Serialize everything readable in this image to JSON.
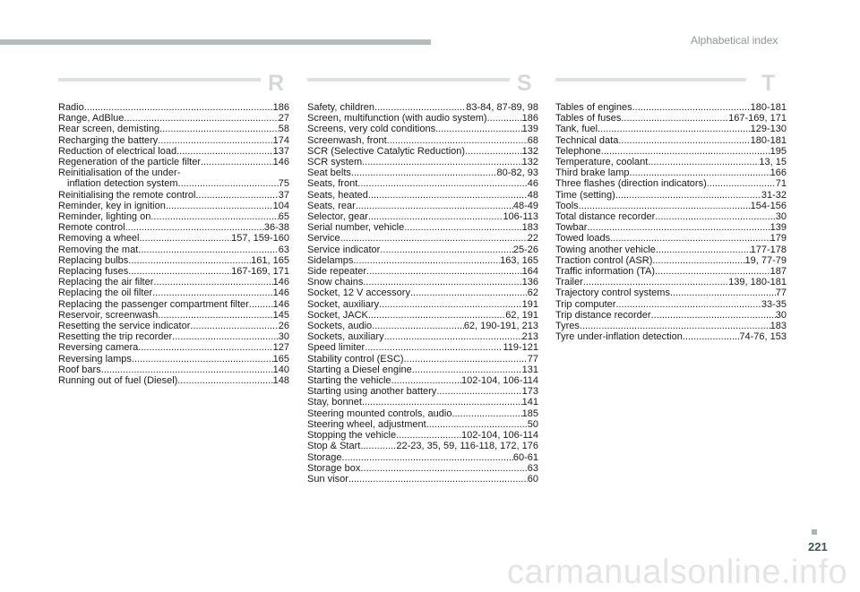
{
  "header": {
    "title": "Alphabetical index"
  },
  "sections": [
    {
      "letter": "R",
      "entries": [
        {
          "name": "Radio",
          "pages": "186"
        },
        {
          "name": "Range, AdBlue",
          "pages": "27"
        },
        {
          "name": "Rear screen, demisting",
          "pages": "58"
        },
        {
          "name": "Recharging the battery",
          "pages": "174"
        },
        {
          "name": "Reduction of electrical load",
          "pages": "137"
        },
        {
          "name": "Regeneration of the particle filter",
          "pages": "146"
        },
        {
          "name": "Reinitialisation of the under-",
          "pages": ""
        },
        {
          "name": "inflation detection system",
          "pages": "75",
          "indent": true
        },
        {
          "name": "Reinitialising the remote control",
          "pages": "37"
        },
        {
          "name": "Reminder, key in ignition",
          "pages": "104"
        },
        {
          "name": "Reminder, lighting on",
          "pages": "65"
        },
        {
          "name": "Remote control",
          "pages": "36-38"
        },
        {
          "name": "Removing a wheel",
          "pages": "157, 159-160"
        },
        {
          "name": "Removing the mat",
          "pages": "63"
        },
        {
          "name": "Replacing bulbs",
          "pages": "161, 165"
        },
        {
          "name": "Replacing fuses",
          "pages": "167-169, 171"
        },
        {
          "name": "Replacing the air filter",
          "pages": "146"
        },
        {
          "name": "Replacing the oil filter",
          "pages": "146"
        },
        {
          "name": "Replacing the passenger compartment filter",
          "pages": "146"
        },
        {
          "name": "Reservoir, screenwash",
          "pages": "145"
        },
        {
          "name": "Resetting the service indicator",
          "pages": "26"
        },
        {
          "name": "Resetting the trip recorder",
          "pages": "30"
        },
        {
          "name": "Reversing camera",
          "pages": "127"
        },
        {
          "name": "Reversing lamps",
          "pages": "165"
        },
        {
          "name": "Roof bars",
          "pages": "140"
        },
        {
          "name": "Running out of fuel (Diesel)",
          "pages": "148"
        }
      ]
    },
    {
      "letter": "S",
      "entries": [
        {
          "name": "Safety, children",
          "pages": "83-84, 87-89, 98"
        },
        {
          "name": "Screen, multifunction (with audio system)",
          "pages": "186"
        },
        {
          "name": "Screens, very cold conditions",
          "pages": "139"
        },
        {
          "name": "Screenwash, front",
          "pages": "68"
        },
        {
          "name": "SCR (Selective Catalytic Reduction)",
          "pages": "132"
        },
        {
          "name": "SCR system",
          "pages": "132"
        },
        {
          "name": "Seat belts",
          "pages": "80-82, 93"
        },
        {
          "name": "Seats, front",
          "pages": "46"
        },
        {
          "name": "Seats, heated",
          "pages": "48"
        },
        {
          "name": "Seats, rear",
          "pages": "48-49"
        },
        {
          "name": "Selector, gear",
          "pages": "106-113"
        },
        {
          "name": "Serial number, vehicle",
          "pages": "183"
        },
        {
          "name": "Service",
          "pages": "22"
        },
        {
          "name": "Service indicator",
          "pages": "25-26"
        },
        {
          "name": "Sidelamps",
          "pages": "163, 165"
        },
        {
          "name": "Side repeater",
          "pages": "164"
        },
        {
          "name": "Snow chains",
          "pages": "136"
        },
        {
          "name": "Socket, 12 V accessory",
          "pages": "62"
        },
        {
          "name": "Socket, auxiliary",
          "pages": "191"
        },
        {
          "name": "Socket, JACK",
          "pages": "62, 191"
        },
        {
          "name": "Sockets, audio",
          "pages": "62, 190-191, 213"
        },
        {
          "name": "Sockets, auxiliary",
          "pages": "213"
        },
        {
          "name": "Speed limiter",
          "pages": "119-121"
        },
        {
          "name": "Stability control (ESC)",
          "pages": "77"
        },
        {
          "name": "Starting a Diesel engine",
          "pages": "131"
        },
        {
          "name": "Starting the vehicle",
          "pages": "102-104, 106-114"
        },
        {
          "name": "Starting using another battery",
          "pages": "173"
        },
        {
          "name": "Stay, bonnet",
          "pages": "141"
        },
        {
          "name": "Steering mounted controls, audio",
          "pages": "185"
        },
        {
          "name": "Steering wheel, adjustment",
          "pages": "50"
        },
        {
          "name": "Stopping the vehicle",
          "pages": "102-104, 106-114"
        },
        {
          "name": "Stop & Start",
          "pages": "22-23, 35, 59, 116-118, 172, 176"
        },
        {
          "name": "Storage",
          "pages": "60-61"
        },
        {
          "name": "Storage box",
          "pages": "63"
        },
        {
          "name": "Sun visor",
          "pages": "60"
        }
      ]
    },
    {
      "letter": "T",
      "entries": [
        {
          "name": "Tables of engines",
          "pages": "180-181"
        },
        {
          "name": "Tables of fuses",
          "pages": "167-169, 171"
        },
        {
          "name": "Tank, fuel",
          "pages": "129-130"
        },
        {
          "name": "Technical data",
          "pages": "180-181"
        },
        {
          "name": "Telephone",
          "pages": "195"
        },
        {
          "name": "Temperature, coolant",
          "pages": "13, 15"
        },
        {
          "name": "Third brake lamp",
          "pages": "166"
        },
        {
          "name": "Three flashes (direction indicators)",
          "pages": "71"
        },
        {
          "name": "Time (setting)",
          "pages": "31-32"
        },
        {
          "name": "Tools",
          "pages": "154-156"
        },
        {
          "name": "Total distance recorder",
          "pages": "30"
        },
        {
          "name": "Towbar",
          "pages": "139"
        },
        {
          "name": "Towed loads",
          "pages": "179"
        },
        {
          "name": "Towing another vehicle",
          "pages": "177-178"
        },
        {
          "name": "Traction control (ASR)",
          "pages": "19, 77-79"
        },
        {
          "name": "Traffic information (TA)",
          "pages": "187"
        },
        {
          "name": "Trailer",
          "pages": "139, 180-181"
        },
        {
          "name": "Trajectory control systems",
          "pages": "77"
        },
        {
          "name": "Trip computer",
          "pages": "33-35"
        },
        {
          "name": "Trip distance recorder",
          "pages": "30"
        },
        {
          "name": "Tyres",
          "pages": "183"
        },
        {
          "name": "Tyre under-inflation detection",
          "pages": "74-76, 153"
        }
      ]
    }
  ],
  "footer": {
    "page_number": "221"
  },
  "watermark": "carmanualsonline.info"
}
